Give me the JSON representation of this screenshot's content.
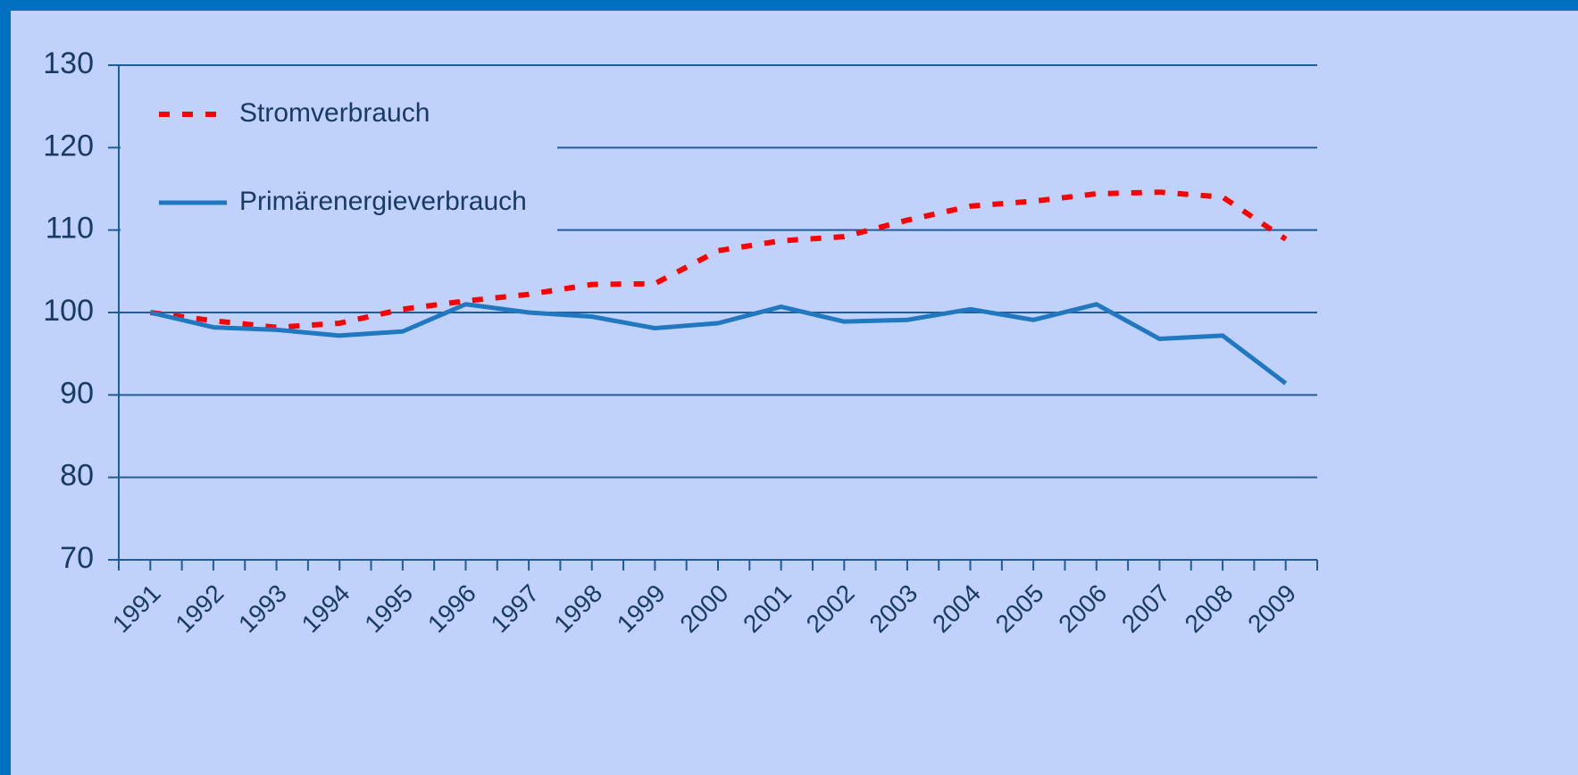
{
  "chart_data": {
    "type": "line",
    "categories": [
      "1991",
      "1992",
      "1993",
      "1994",
      "1995",
      "1996",
      "1997",
      "1998",
      "1999",
      "2000",
      "2001",
      "2002",
      "2003",
      "2004",
      "2005",
      "2006",
      "2007",
      "2008",
      "2009"
    ],
    "series": [
      {
        "name": "Stromverbrauch",
        "color": "#ff0000",
        "dashed": true,
        "values": [
          100,
          99.0,
          98.2,
          98.7,
          100.4,
          101.4,
          102.2,
          103.4,
          103.5,
          107.5,
          108.7,
          109.2,
          111.2,
          112.9,
          113.5,
          114.4,
          114.6,
          114.0,
          108.9
        ]
      },
      {
        "name": "Primärenergieverbrauch",
        "color": "#1f78c0",
        "dashed": false,
        "values": [
          100,
          98.2,
          97.9,
          97.2,
          97.7,
          101.0,
          100,
          99.5,
          98.1,
          98.7,
          100.7,
          98.9,
          99.1,
          100.4,
          99.1,
          101.0,
          96.8,
          97.2,
          91.4
        ]
      }
    ],
    "ylim": [
      70,
      130
    ],
    "yticks": [
      70,
      80,
      90,
      100,
      110,
      120,
      130
    ],
    "grid": true
  }
}
